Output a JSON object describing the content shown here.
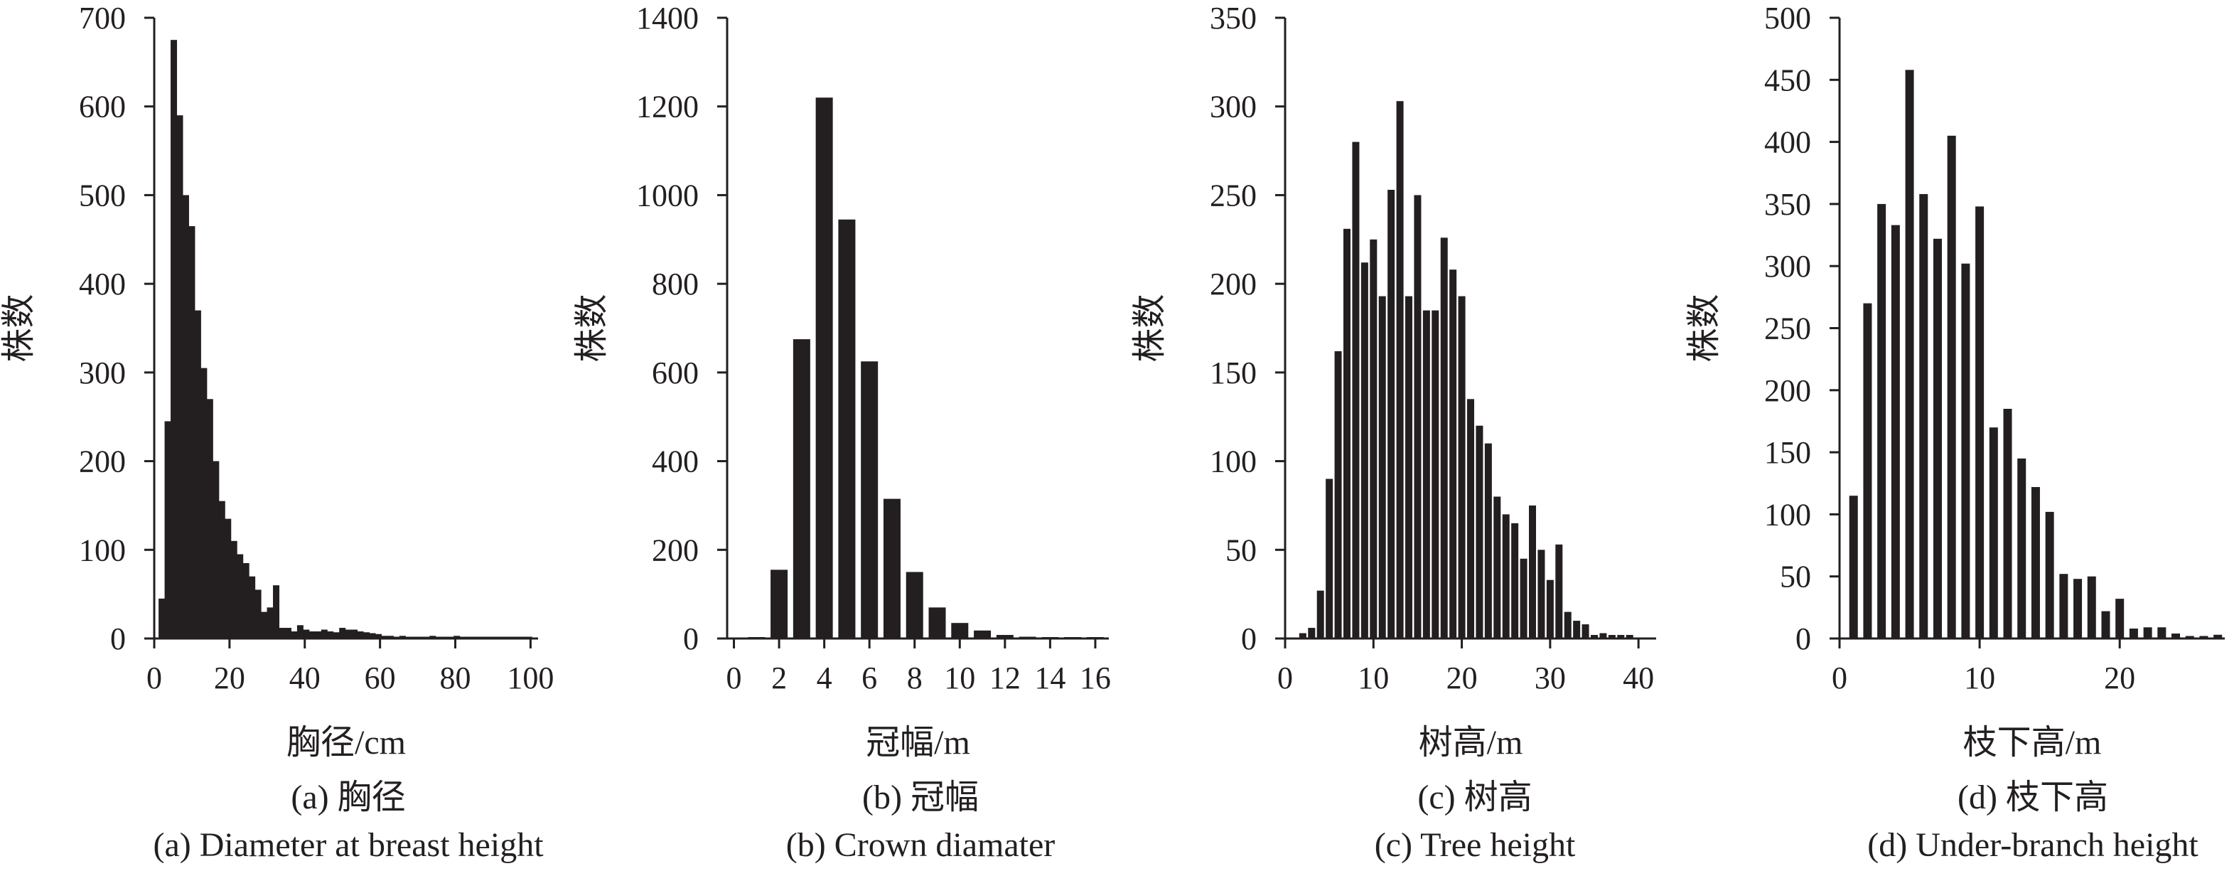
{
  "chart_data": [
    {
      "type": "bar",
      "panel": "a",
      "xlabel": "胸径/cm",
      "ylabel": "株数",
      "caption_cn": "(a) 胸径",
      "caption_en": "(a) Diameter at breast height",
      "xlim": [
        0,
        102
      ],
      "ylim": [
        0,
        700
      ],
      "xticks": [
        0,
        20,
        40,
        60,
        80,
        100
      ],
      "yticks": [
        0,
        100,
        200,
        300,
        400,
        500,
        600,
        700
      ],
      "bar_color": "#231f20",
      "x": [
        2,
        3.6,
        5.2,
        6.8,
        8.4,
        10,
        11.6,
        13.2,
        14.8,
        16.4,
        18,
        19.6,
        21.2,
        22.8,
        24.4,
        26,
        27.6,
        29.2,
        30.8,
        32.4,
        34,
        35.6,
        37.2,
        38.8,
        40.4,
        42,
        43.6,
        45.2,
        46.8,
        48.4,
        50,
        51.6,
        53.2,
        54.8,
        56.4,
        58,
        59.6,
        61.2,
        62.8,
        64.4,
        66,
        67.6,
        69.2,
        70.8,
        72.4,
        74,
        75.6,
        77.2,
        78.8,
        80.4,
        82,
        83.6,
        85.2,
        86.8,
        88.4,
        90,
        91.6,
        93.2,
        94.8,
        96.4,
        98,
        99.6
      ],
      "values": [
        45,
        245,
        675,
        590,
        500,
        465,
        370,
        305,
        270,
        200,
        155,
        135,
        110,
        95,
        85,
        70,
        55,
        30,
        35,
        60,
        12,
        12,
        8,
        15,
        10,
        8,
        8,
        10,
        8,
        7,
        12,
        10,
        10,
        8,
        7,
        6,
        5,
        3,
        3,
        2,
        3,
        2,
        2,
        2,
        2,
        3,
        2,
        2,
        2,
        3,
        2,
        2,
        2,
        2,
        2,
        2,
        2,
        2,
        2,
        2,
        2,
        2
      ]
    },
    {
      "type": "bar",
      "panel": "b",
      "xlabel": "冠幅/m",
      "ylabel": "株数",
      "caption_cn": "(b) 冠幅",
      "caption_en": "(b) Crown diamater",
      "xlim": [
        -0.3,
        16.6
      ],
      "ylim": [
        0,
        1400
      ],
      "xticks": [
        0,
        2,
        4,
        6,
        8,
        10,
        12,
        14,
        16
      ],
      "yticks": [
        0,
        200,
        400,
        600,
        800,
        1000,
        1200,
        1400
      ],
      "bar_color": "#231f20",
      "x": [
        1,
        2,
        3,
        4,
        5,
        6,
        7,
        8,
        9,
        10,
        11,
        12,
        13,
        14,
        15,
        16
      ],
      "values": [
        2,
        155,
        675,
        1220,
        945,
        625,
        315,
        150,
        70,
        35,
        18,
        8,
        4,
        3,
        2,
        1
      ]
    },
    {
      "type": "bar",
      "panel": "c",
      "xlabel": "树高/m",
      "ylabel": "株数",
      "caption_cn": "(c) 树高",
      "caption_en": "(c) Tree height",
      "xlim": [
        0,
        42
      ],
      "ylim": [
        0,
        350
      ],
      "xticks": [
        0,
        10,
        20,
        30,
        40
      ],
      "yticks": [
        0,
        50,
        100,
        150,
        200,
        250,
        300,
        350
      ],
      "bar_color": "#231f20",
      "x": [
        2,
        3,
        4,
        5,
        6,
        7,
        8,
        9,
        10,
        11,
        12,
        13,
        14,
        15,
        16,
        17,
        18,
        19,
        20,
        21,
        22,
        23,
        24,
        25,
        26,
        27,
        28,
        29,
        30,
        31,
        32,
        33,
        34,
        35,
        36,
        37,
        38,
        39
      ],
      "values": [
        3,
        6,
        27,
        90,
        162,
        231,
        280,
        212,
        225,
        193,
        253,
        303,
        193,
        250,
        185,
        185,
        226,
        208,
        193,
        135,
        120,
        110,
        80,
        70,
        65,
        45,
        75,
        50,
        33,
        53,
        15,
        10,
        8,
        2,
        3,
        2,
        2,
        2
      ]
    },
    {
      "type": "bar",
      "panel": "d",
      "xlabel": "枝下高/m",
      "ylabel": "株数",
      "caption_cn": "(d) 枝下高",
      "caption_en": "(d) Under-branch height",
      "xlim": [
        0,
        27.5
      ],
      "ylim": [
        0,
        500
      ],
      "xticks": [
        0,
        10,
        20
      ],
      "yticks": [
        0,
        50,
        100,
        150,
        200,
        250,
        300,
        350,
        400,
        450,
        500
      ],
      "bar_color": "#231f20",
      "x": [
        1,
        2,
        3,
        4,
        5,
        6,
        7,
        8,
        9,
        10,
        11,
        12,
        13,
        14,
        15,
        16,
        17,
        18,
        19,
        20,
        21,
        22,
        23,
        24,
        25,
        26,
        27
      ],
      "values": [
        115,
        270,
        350,
        333,
        458,
        358,
        322,
        405,
        302,
        348,
        170,
        185,
        145,
        122,
        102,
        52,
        48,
        50,
        22,
        32,
        8,
        9,
        9,
        4,
        2,
        2,
        3
      ]
    }
  ]
}
